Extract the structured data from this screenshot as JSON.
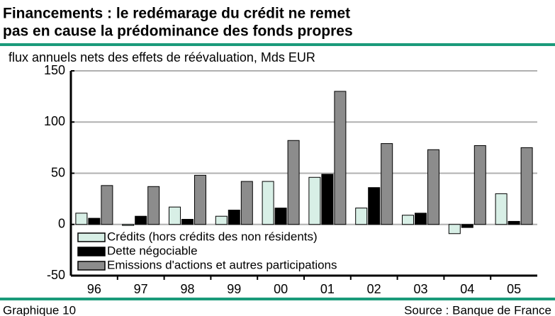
{
  "chart_data": {
    "type": "bar",
    "title": "Financements : le redémarage du crédit ne remet",
    "title2": "pas en cause la prédominance des fonds propres",
    "subtitle": "flux annuels nets des effets de réévaluation, Mds EUR",
    "note": "Graphique 10",
    "source": "Source : Banque de France",
    "categories": [
      "96",
      "97",
      "98",
      "99",
      "00",
      "01",
      "02",
      "03",
      "04",
      "05"
    ],
    "series": [
      {
        "name": "Crédits (hors crédits des non résidents)",
        "color": "#d8efe6",
        "values": [
          11,
          -1,
          17,
          8,
          42,
          46,
          16,
          9,
          -9,
          30
        ]
      },
      {
        "name": "Dette négociable",
        "color": "#000000",
        "values": [
          6,
          8,
          5,
          14,
          16,
          49,
          36,
          11,
          -3,
          3
        ]
      },
      {
        "name": "Emissions d'actions et autres participations",
        "color": "#8c8c8c",
        "values": [
          38,
          37,
          48,
          42,
          82,
          130,
          79,
          73,
          77,
          75
        ]
      }
    ],
    "ylim": [
      -50,
      150
    ],
    "yticks": [
      -50,
      0,
      50,
      100,
      150
    ],
    "grid": true,
    "legend": "lower left"
  }
}
